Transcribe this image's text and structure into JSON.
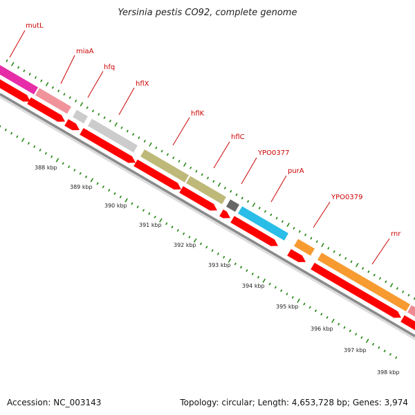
{
  "title": "Yersinia pestis CO92, complete genome",
  "footer": {
    "accession": "Accession: NC_003143",
    "summary": "Topology: circular; Length: 4,653,728 bp; Genes: 3,974"
  },
  "colors": {
    "backbone": "#8a8a8a",
    "cds": "#ff0000",
    "tick": "#2a8a1a",
    "label": "#cc0000"
  },
  "genes": [
    {
      "name": "mutL",
      "color": "#e41ba0"
    },
    {
      "name": "miaA",
      "color": "#ef8a93"
    },
    {
      "name": "hfq",
      "color": "#c8c8c8"
    },
    {
      "name": "hflX",
      "color": "#c8c8c8"
    },
    {
      "name": "hflK",
      "color": "#b9b36e"
    },
    {
      "name": "hflC",
      "color": "#b9b36e"
    },
    {
      "name": "YPO0377",
      "color": "#5a5a5a"
    },
    {
      "name": "purA",
      "color": "#17b7e5"
    },
    {
      "name": "YPO0379",
      "color": "#f6931f"
    },
    {
      "name": "rnr",
      "color": "#f6931f"
    }
  ],
  "kbp_labels": [
    "388 kbp",
    "389 kbp",
    "390 kbp",
    "391 kbp",
    "392 kbp",
    "393 kbp",
    "394 kbp",
    "395 kbp",
    "396 kbp",
    "397 kbp",
    "398 kbp"
  ]
}
